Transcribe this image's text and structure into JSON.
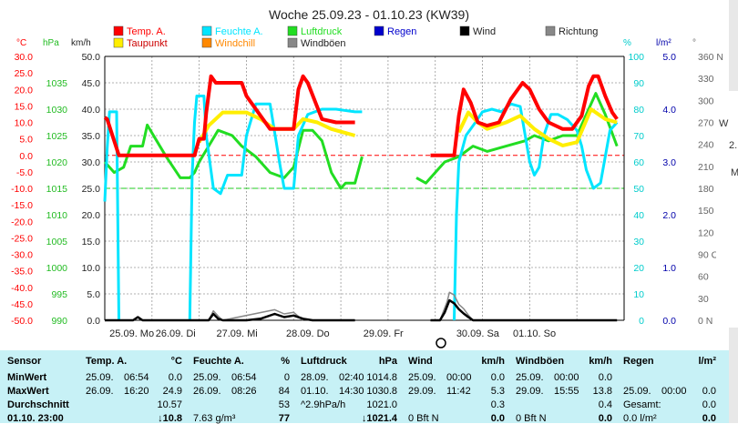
{
  "chart_data": {
    "type": "line",
    "title": "Woche 25.09.23 - 01.10.23 (KW39)",
    "legend": [
      {
        "label": "Temp. A.",
        "color": "#ff0000"
      },
      {
        "label": "Feuchte A.",
        "color": "#00e5ff"
      },
      {
        "label": "Luftdruck",
        "color": "#22dd22"
      },
      {
        "label": "Regen",
        "color": "#0000cc"
      },
      {
        "label": "Wind",
        "color": "#000000"
      },
      {
        "label": "Richtung",
        "color": "#888888"
      },
      {
        "label": "Taupunkt",
        "color": "#ffee00"
      },
      {
        "label": "Windchill",
        "color": "#ff8800"
      },
      {
        "label": "Windböen",
        "color": "#888888"
      }
    ],
    "units_left": [
      "°C",
      "hPa",
      "km/h"
    ],
    "units_right": [
      "%",
      "l/m²",
      "°"
    ],
    "axis_temp": [
      "30.0",
      "25.0",
      "20.0",
      "15.0",
      "10.0",
      "5.0",
      "0.0",
      "-5.0",
      "-10.0",
      "-15.0",
      "-20.0",
      "-25.0",
      "-30.0",
      "-35.0",
      "-40.0",
      "-45.0",
      "-50.0"
    ],
    "axis_hpa": [
      "1035",
      "1030",
      "1025",
      "1020",
      "1015",
      "1010",
      "1005",
      "1000",
      "995",
      "990"
    ],
    "axis_kmh": [
      "50.0",
      "45.0",
      "40.0",
      "35.0",
      "30.0",
      "25.0",
      "20.0",
      "15.0",
      "10.0",
      "5.0",
      "0.0"
    ],
    "axis_pct": [
      "100",
      "90",
      "80",
      "70",
      "60",
      "50",
      "40",
      "30",
      "20",
      "10",
      "0"
    ],
    "axis_rain": [
      "5.0",
      "4.0",
      "3.0",
      "2.0",
      "1.0",
      "0.0"
    ],
    "axis_deg": [
      "360 N",
      "330",
      "300",
      "270 W",
      "240",
      "210",
      "180 S",
      "150",
      "120",
      "90 O",
      "60",
      "30",
      "0 N"
    ],
    "x_labels": [
      "25.09. Mo",
      "26.09. Di",
      "27.09. Mi",
      "28.09. Do",
      "29.09. Fr",
      "30.09. Sa",
      "01.10. So"
    ],
    "ylim_temp": [
      -50,
      30
    ],
    "ylim_kmh": [
      0,
      50
    ],
    "series": [
      {
        "name": "Temp. A.",
        "color": "#ff0000",
        "width": 4,
        "points": [
          [
            0.0,
            11.5
          ],
          [
            0.05,
            11
          ],
          [
            0.3,
            0
          ],
          [
            0.6,
            0
          ],
          [
            1.0,
            0
          ],
          [
            1.5,
            0
          ],
          [
            1.8,
            0
          ],
          [
            1.9,
            0
          ],
          [
            2.0,
            5
          ],
          [
            2.1,
            5
          ],
          [
            2.15,
            13
          ],
          [
            2.25,
            24
          ],
          [
            2.35,
            22
          ],
          [
            2.5,
            22
          ],
          [
            2.8,
            22
          ],
          [
            2.9,
            22
          ],
          [
            3.0,
            18
          ],
          [
            3.5,
            8
          ],
          [
            3.9,
            8
          ],
          [
            4.0,
            8
          ],
          [
            4.1,
            20
          ],
          [
            4.2,
            24
          ],
          [
            4.3,
            22
          ],
          [
            4.6,
            11
          ],
          [
            4.9,
            10
          ],
          [
            5.2,
            10
          ],
          [
            5.3,
            10
          ]
        ],
        "points2": [
          [
            6.9,
            0
          ],
          [
            7.2,
            0
          ],
          [
            7.4,
            0
          ],
          [
            7.5,
            12
          ],
          [
            7.6,
            20
          ],
          [
            7.75,
            16
          ],
          [
            7.9,
            10
          ],
          [
            8.1,
            9
          ],
          [
            8.35,
            10
          ],
          [
            8.6,
            17
          ],
          [
            8.85,
            22
          ],
          [
            9.0,
            20
          ],
          [
            9.2,
            14
          ],
          [
            9.4,
            10
          ],
          [
            9.7,
            8
          ],
          [
            9.9,
            8
          ],
          [
            10.1,
            12
          ],
          [
            10.25,
            21
          ],
          [
            10.35,
            24
          ],
          [
            10.45,
            24
          ],
          [
            10.6,
            18
          ],
          [
            10.75,
            13
          ],
          [
            10.85,
            11
          ]
        ]
      },
      {
        "name": "Taupunkt",
        "color": "#ffee00",
        "width": 4,
        "points": [
          [
            2.0,
            4
          ],
          [
            2.2,
            9
          ],
          [
            2.5,
            13
          ],
          [
            3.0,
            13
          ],
          [
            3.3,
            11
          ],
          [
            3.6,
            8
          ],
          [
            4.0,
            8
          ],
          [
            4.2,
            11
          ],
          [
            4.5,
            10
          ],
          [
            4.8,
            8
          ],
          [
            5.3,
            6
          ]
        ],
        "points2": [
          [
            7.5,
            7
          ],
          [
            7.7,
            13
          ],
          [
            7.9,
            10
          ],
          [
            8.1,
            8
          ],
          [
            8.5,
            10
          ],
          [
            8.8,
            12
          ],
          [
            9.1,
            8
          ],
          [
            9.4,
            5
          ],
          [
            9.7,
            3
          ],
          [
            10.0,
            4
          ],
          [
            10.3,
            14
          ],
          [
            10.6,
            11
          ],
          [
            10.85,
            10
          ]
        ]
      },
      {
        "name": "Luftdruck",
        "color": "#22dd22",
        "width": 3,
        "points": [
          [
            0.0,
            1020
          ],
          [
            0.2,
            1018
          ],
          [
            0.4,
            1019
          ],
          [
            0.55,
            1023
          ],
          [
            0.8,
            1023
          ],
          [
            0.9,
            1027
          ],
          [
            1.1,
            1024
          ],
          [
            1.3,
            1021
          ],
          [
            1.6,
            1017
          ],
          [
            1.8,
            1017
          ],
          [
            1.9,
            1018
          ],
          [
            2.0,
            1020
          ],
          [
            2.2,
            1023
          ],
          [
            2.4,
            1026
          ],
          [
            2.7,
            1025
          ],
          [
            2.9,
            1023
          ],
          [
            3.2,
            1021
          ],
          [
            3.5,
            1018
          ],
          [
            3.8,
            1017
          ],
          [
            4.0,
            1019
          ],
          [
            4.2,
            1026
          ],
          [
            4.4,
            1026
          ],
          [
            4.6,
            1024
          ],
          [
            4.8,
            1018
          ],
          [
            5.0,
            1015
          ],
          [
            5.1,
            1016
          ],
          [
            5.3,
            1016
          ],
          [
            5.45,
            1021
          ]
        ],
        "points2": [
          [
            6.6,
            1017
          ],
          [
            6.8,
            1016
          ],
          [
            7.0,
            1018
          ],
          [
            7.2,
            1020
          ],
          [
            7.5,
            1021
          ],
          [
            7.8,
            1023
          ],
          [
            8.1,
            1022
          ],
          [
            8.5,
            1023
          ],
          [
            8.9,
            1024
          ],
          [
            9.1,
            1025
          ],
          [
            9.4,
            1024
          ],
          [
            9.7,
            1025
          ],
          [
            10.0,
            1025
          ],
          [
            10.2,
            1029
          ],
          [
            10.4,
            1033
          ],
          [
            10.6,
            1029
          ],
          [
            10.85,
            1023
          ]
        ]
      },
      {
        "name": "Feuchte A.",
        "color": "#00e5ff",
        "width": 3,
        "points": [
          [
            0.0,
            45
          ],
          [
            0.05,
            65
          ],
          [
            0.1,
            79
          ],
          [
            0.2,
            79
          ],
          [
            0.25,
            79
          ],
          [
            0.3,
            0
          ]
        ],
        "points_b": [
          [
            1.8,
            0
          ],
          [
            1.85,
            55
          ],
          [
            1.9,
            75
          ],
          [
            1.95,
            85
          ],
          [
            2.1,
            85
          ],
          [
            2.15,
            70
          ],
          [
            2.3,
            50
          ],
          [
            2.45,
            48
          ],
          [
            2.6,
            55
          ],
          [
            2.8,
            55
          ],
          [
            2.9,
            55
          ],
          [
            3.0,
            70
          ],
          [
            3.2,
            82
          ],
          [
            3.4,
            82
          ],
          [
            3.5,
            82
          ],
          [
            3.7,
            60
          ],
          [
            3.8,
            50
          ],
          [
            3.9,
            50
          ],
          [
            4.0,
            50
          ],
          [
            4.1,
            70
          ],
          [
            4.3,
            78
          ],
          [
            4.6,
            80
          ],
          [
            4.9,
            80
          ],
          [
            5.3,
            79
          ],
          [
            5.45,
            79
          ]
        ],
        "points2": [
          [
            7.4,
            0
          ],
          [
            7.45,
            40
          ],
          [
            7.5,
            60
          ],
          [
            7.65,
            70
          ],
          [
            7.85,
            75
          ],
          [
            8.0,
            79
          ],
          [
            8.2,
            80
          ],
          [
            8.4,
            79
          ],
          [
            8.6,
            82
          ],
          [
            8.8,
            81
          ],
          [
            9.0,
            60
          ],
          [
            9.1,
            55
          ],
          [
            9.2,
            58
          ],
          [
            9.3,
            70
          ],
          [
            9.45,
            78
          ],
          [
            9.6,
            78
          ],
          [
            9.8,
            76
          ],
          [
            10.0,
            72
          ],
          [
            10.1,
            66
          ],
          [
            10.2,
            57
          ],
          [
            10.35,
            50
          ],
          [
            10.5,
            52
          ],
          [
            10.6,
            62
          ],
          [
            10.7,
            72
          ],
          [
            10.85,
            75
          ]
        ]
      },
      {
        "name": "Wind",
        "color": "#000000",
        "width": 2.5,
        "points": [
          [
            0.0,
            0
          ],
          [
            0.6,
            0
          ],
          [
            0.7,
            0.6
          ],
          [
            0.75,
            0.3
          ],
          [
            0.8,
            0
          ],
          [
            2.2,
            0
          ],
          [
            2.3,
            1.2
          ],
          [
            2.4,
            0.3
          ],
          [
            2.5,
            0
          ],
          [
            3.0,
            0
          ],
          [
            3.3,
            0.3
          ],
          [
            3.6,
            1.2
          ],
          [
            3.8,
            0.6
          ],
          [
            4.0,
            0.9
          ],
          [
            4.2,
            0.3
          ],
          [
            4.4,
            0
          ],
          [
            5.3,
            0
          ]
        ],
        "points2": [
          [
            6.9,
            0
          ],
          [
            7.1,
            0
          ],
          [
            7.2,
            1.5
          ],
          [
            7.3,
            3.8
          ],
          [
            7.4,
            3.2
          ],
          [
            7.5,
            2.1
          ],
          [
            7.6,
            1.3
          ],
          [
            7.7,
            0.6
          ],
          [
            7.8,
            0
          ],
          [
            10.85,
            0
          ]
        ]
      },
      {
        "name": "Windböen",
        "color": "#888888",
        "width": 1.5,
        "points": [
          [
            2.2,
            0
          ],
          [
            2.3,
            1.8
          ],
          [
            2.4,
            0.8
          ],
          [
            2.5,
            0
          ],
          [
            3.6,
            2.0
          ],
          [
            3.8,
            1.2
          ],
          [
            4.0,
            1.5
          ],
          [
            4.2,
            0
          ]
        ],
        "points2": [
          [
            7.1,
            0
          ],
          [
            7.25,
            3.5
          ],
          [
            7.3,
            5.3
          ],
          [
            7.4,
            4.8
          ],
          [
            7.5,
            3.0
          ],
          [
            7.6,
            2.2
          ],
          [
            7.7,
            1.0
          ],
          [
            7.8,
            0
          ]
        ]
      }
    ]
  },
  "table": {
    "sensor": {
      "header": "Sensor",
      "rows": [
        "MinWert",
        "MaxWert",
        "Durchschnitt",
        "01.10. 23:00"
      ]
    },
    "temp": {
      "header": "Temp. A.",
      "unit": "°C",
      "rows": [
        [
          "25.09.",
          "06:54",
          "0.0"
        ],
        [
          "26.09.",
          "16:20",
          "24.9"
        ],
        [
          "",
          "",
          "10.57"
        ],
        [
          "",
          "",
          "↓10.8"
        ]
      ]
    },
    "feuchte": {
      "header": "Feuchte A.",
      "unit": "%",
      "rows": [
        [
          "25.09.",
          "06:54",
          "0"
        ],
        [
          "26.09.",
          "08:26",
          "84"
        ],
        [
          "",
          "",
          "53"
        ],
        [
          "7.63 g/m³",
          "",
          "77"
        ]
      ]
    },
    "druck": {
      "header": "Luftdruck",
      "unit": "hPa",
      "rows": [
        [
          "28.09.",
          "02:40",
          "1014.8"
        ],
        [
          "01.10.",
          "14:30",
          "1030.8"
        ],
        [
          "^2.9hPa/h",
          "",
          "1021.0"
        ],
        [
          "",
          "",
          "↓1021.4"
        ]
      ]
    },
    "wind": {
      "header": "Wind",
      "unit": "km/h",
      "rows": [
        [
          "25.09.",
          "00:00",
          "0.0"
        ],
        [
          "29.09.",
          "11:42",
          "5.3"
        ],
        [
          "",
          "",
          "0.3"
        ],
        [
          "0 Bft N",
          "",
          "0.0"
        ]
      ]
    },
    "boeen": {
      "header": "Windböen",
      "unit": "km/h",
      "rows": [
        [
          "25.09.",
          "00:00",
          "0.0"
        ],
        [
          "29.09.",
          "15:55",
          "13.8"
        ],
        [
          "",
          "",
          "0.4"
        ],
        [
          "0 Bft N",
          "",
          "0.0"
        ]
      ]
    },
    "regen": {
      "header": "Regen",
      "unit": "l/m²",
      "rows": [
        [
          "",
          "",
          ""
        ],
        [
          "25.09.",
          "00:00",
          "0.0"
        ],
        [
          "Gesamt:",
          "",
          "0.0"
        ],
        [
          "0.0 l/m²",
          "",
          "0.0"
        ]
      ]
    }
  },
  "edge_text": [
    "2.",
    "M",
    "W",
    "A"
  ]
}
